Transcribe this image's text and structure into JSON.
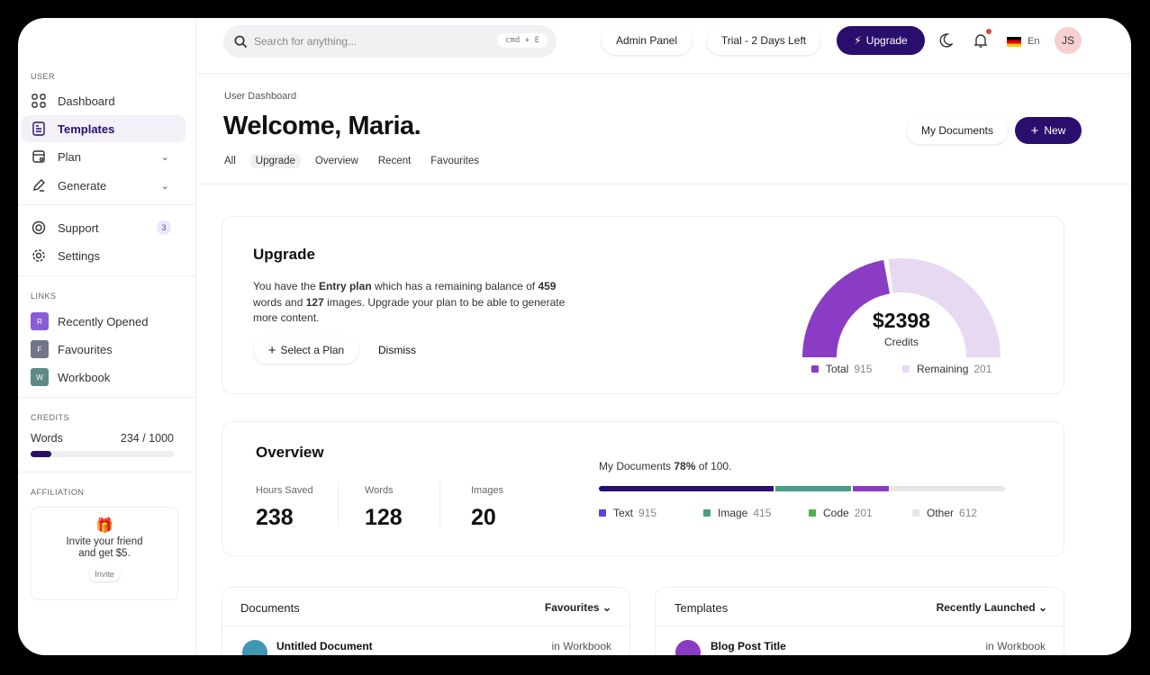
{
  "search": {
    "placeholder": "Search for anything...",
    "shortcut": "cmd + E"
  },
  "topbar": {
    "admin": "Admin Panel",
    "trial": "Trial - 2 Days Left",
    "upgrade": "Upgrade",
    "lang": "En",
    "avatar": "JS"
  },
  "sidebar": {
    "user_label": "USER",
    "items": [
      {
        "label": "Dashboard"
      },
      {
        "label": "Templates"
      },
      {
        "label": "Plan"
      },
      {
        "label": "Generate"
      },
      {
        "label": "Support",
        "badge": "3"
      },
      {
        "label": "Settings"
      }
    ],
    "links_label": "LINKS",
    "links": [
      {
        "letter": "R",
        "label": "Recently Opened",
        "color": "#8a5cd6"
      },
      {
        "letter": "F",
        "label": "Favourites",
        "color": "#707687"
      },
      {
        "letter": "W",
        "label": "Workbook",
        "color": "#5e8a85"
      }
    ],
    "credits_label": "CREDITS",
    "credits_name": "Words",
    "credits_value": "234 / 1000",
    "credits_fraction": 0.234,
    "affiliation_label": "AFFILIATION",
    "invite_text1": "Invite your friend",
    "invite_text2": "and get $5.",
    "invite_button": "Invite"
  },
  "header": {
    "breadcrumb": "User Dashboard",
    "title": "Welcome, Maria.",
    "my_documents": "My Documents",
    "new": "New",
    "tabs": [
      "All",
      "Upgrade",
      "Overview",
      "Recent",
      "Favourites"
    ],
    "active_tab": "Upgrade"
  },
  "upgrade": {
    "title": "Upgrade",
    "p1": "You have the ",
    "plan": "Entry plan",
    "p2": " which has a remaining balance of ",
    "words": "459",
    "p3": " words and ",
    "images": "127",
    "p4": " images. Upgrade your plan to be able to generate more content.",
    "select": "Select a Plan",
    "dismiss": "Dismiss",
    "gauge": {
      "value": "$2398",
      "label": "Credits",
      "used_fraction": 0.45,
      "colors": [
        "#8b3cc4",
        "#e8d9f3"
      ],
      "legend": [
        {
          "label": "Total",
          "value": "915",
          "color": "#8b3cc4"
        },
        {
          "label": "Remaining",
          "value": "201",
          "color": "#e8d9f3"
        }
      ]
    }
  },
  "overview": {
    "title": "Overview",
    "stats": [
      {
        "label": "Hours Saved",
        "value": "238"
      },
      {
        "label": "Words",
        "value": "128"
      },
      {
        "label": "Images",
        "value": "20"
      }
    ],
    "docs_prefix": "My Documents ",
    "docs_pct": "78%",
    "docs_suffix": " of 100.",
    "segments": [
      {
        "fraction": 0.435,
        "color": "#2a0e6e"
      },
      {
        "fraction": 0.19,
        "color": "#4a9e86"
      },
      {
        "fraction": 0.09,
        "color": "#8b3cc4"
      },
      {
        "fraction": 0.285,
        "color": "#e6e6e6"
      }
    ],
    "legend": [
      {
        "label": "Text",
        "value": "915",
        "color": "#5b3fe0"
      },
      {
        "label": "Image",
        "value": "415",
        "color": "#4a9e86"
      },
      {
        "label": "Code",
        "value": "201",
        "color": "#4caf50"
      },
      {
        "label": "Other",
        "value": "612",
        "color": "#e6e6e6"
      }
    ]
  },
  "documents": {
    "title": "Documents",
    "filter": "Favourites",
    "row_title": "Untitled Document",
    "row_meta": "in Workbook"
  },
  "templates": {
    "title": "Templates",
    "filter": "Recently Launched",
    "row_title": "Blog Post Title",
    "row_meta": "in Workbook"
  }
}
